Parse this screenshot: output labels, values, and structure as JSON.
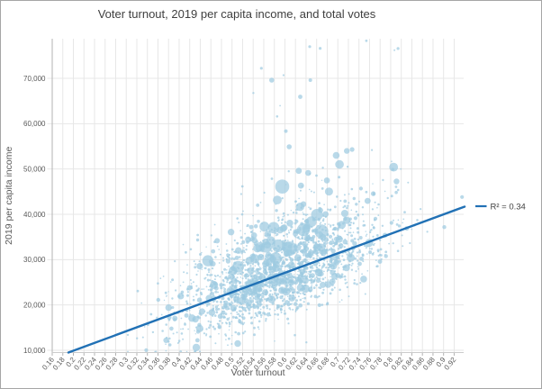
{
  "chart_data": {
    "type": "scatter",
    "title": "Voter turnout, 2019 per capita income, and total votes",
    "xlabel": "Voter turnout",
    "ylabel": "2019 per capita income",
    "xlim": [
      0.16,
      0.938
    ],
    "ylim": [
      9500,
      78750
    ],
    "grid": true,
    "legend_position": "right",
    "x_tick_values": [
      0.16,
      0.18,
      0.2,
      0.22,
      0.24,
      0.26,
      0.28,
      0.3,
      0.32,
      0.34,
      0.36,
      0.38,
      0.4,
      0.42,
      0.44,
      0.46,
      0.48,
      0.5,
      0.52,
      0.54,
      0.56,
      0.58,
      0.6,
      0.62,
      0.64,
      0.66,
      0.68,
      0.7,
      0.72,
      0.74,
      0.76,
      0.78,
      0.8,
      0.82,
      0.84,
      0.86,
      0.88,
      0.9,
      0.92
    ],
    "x_tick_labels": [
      "0.16",
      "0.18",
      "0.2",
      "0.22",
      "0.24",
      "0.26",
      "0.28",
      "0.3",
      "0.32",
      "0.34",
      "0.36",
      "0.38",
      "0.4",
      "0.42",
      "0.44",
      "0.46",
      "0.48",
      "0.5",
      "0.52",
      "0.54",
      "0.56",
      "0.58",
      "0.6",
      "0.62",
      "0.64",
      "0.66",
      "0.68",
      "0.7",
      "0.72",
      "0.74",
      "0.76",
      "0.78",
      "0.8",
      "0.82",
      "0.84",
      "0.86",
      "0.88",
      "0.9",
      "0.92"
    ],
    "y_tick_values": [
      10000,
      20000,
      30000,
      40000,
      50000,
      60000,
      70000
    ],
    "y_tick_labels": [
      "10,000",
      "20,000",
      "30,000",
      "40,000",
      "50,000",
      "60,000",
      "70,000"
    ],
    "trendline": {
      "x1": 0.1906,
      "y1": 9500,
      "x2": 0.9398,
      "y2": 41700,
      "label": "R² = 0.34"
    },
    "scatter": {
      "seed": 1337,
      "n_main": 1950,
      "x_mean": 0.585,
      "x_sd": 0.098,
      "x_clip": [
        0.303,
        0.935
      ],
      "trend_slope": 42930,
      "trend_x0": 0.19,
      "trend_y0": 9500,
      "noise_sd_low": 4300,
      "noise_sd_high": 6900,
      "y_clip": [
        9700,
        78500
      ],
      "n_big": 46,
      "big_x_mean": 0.6,
      "big_x_sd": 0.075,
      "big_y_offset": 2000,
      "big_y_sd": 9500,
      "big_y_clip": [
        16000,
        60000
      ],
      "n_high_outliers": 10,
      "outlier_x_mean": 0.62,
      "outlier_x_sd": 0.07,
      "outlier_y_min": 57000,
      "outlier_y_range": 21000,
      "featured_points": [
        {
          "x": 0.548,
          "y": 32500,
          "r": 4.6
        },
        {
          "x": 0.567,
          "y": 33200,
          "r": 3.8
        },
        {
          "x": 0.608,
          "y": 54900,
          "r": 2.8
        },
        {
          "x": 0.697,
          "y": 53000,
          "r": 3.8
        },
        {
          "x": 0.717,
          "y": 54000,
          "r": 3.2
        },
        {
          "x": 0.727,
          "y": 54300,
          "r": 2.6
        },
        {
          "x": 0.575,
          "y": 69600,
          "r": 2.8
        },
        {
          "x": 0.648,
          "y": 69600,
          "r": 2.0
        },
        {
          "x": 0.754,
          "y": 78300,
          "r": 1.4
        },
        {
          "x": 0.807,
          "y": 76200,
          "r": 1.0
        }
      ]
    },
    "colors": {
      "dot": "#9ecae1",
      "dot_opacity": 0.72,
      "trend": "#2171b5",
      "grid": "#e7e7e7",
      "axis": "#b3b3b3",
      "baseline": "#cccccc",
      "tick_text": "#595959",
      "title_text": "#3f3f3f",
      "legend_text": "#404040",
      "border": "#a6a6a6"
    }
  }
}
